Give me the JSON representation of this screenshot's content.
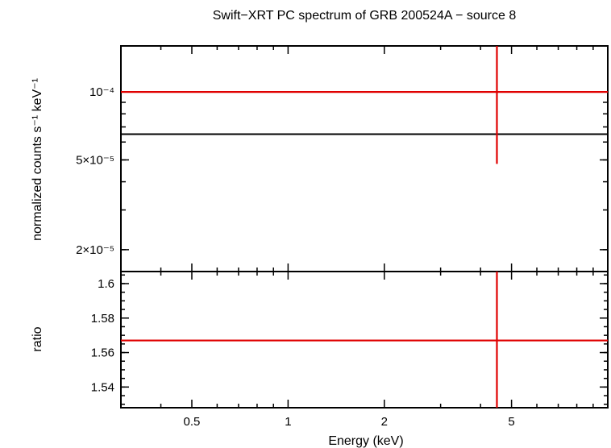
{
  "chart_data": [
    {
      "type": "line",
      "panel": "spectrum",
      "title": "Swift−XRT PC spectrum of GRB 200524A − source 8",
      "xlabel": "Energy (keV)",
      "ylabel": "normalized counts s⁻¹ keV⁻¹",
      "xscale": "log",
      "yscale": "log",
      "xlim": [
        0.3,
        10
      ],
      "ylim": [
        1.6e-05,
        0.00016
      ],
      "yticks": [
        {
          "value": 0.0001,
          "label": "10⁻⁴"
        },
        {
          "value": 5e-05,
          "label": "5×10⁻⁵"
        },
        {
          "value": 2e-05,
          "label": "2×10⁻⁵"
        }
      ],
      "series": [
        {
          "kind": "data",
          "color": "#e00000",
          "x": 4.5,
          "xerr": [
            0.3,
            10
          ],
          "y": 0.0001,
          "yerr": [
            4.8e-05,
            0.00016
          ]
        },
        {
          "kind": "model",
          "color": "#000000",
          "x": [
            0.3,
            10
          ],
          "y": [
            6.5e-05,
            6.5e-05
          ]
        }
      ]
    },
    {
      "type": "line",
      "panel": "ratio",
      "xlabel": "Energy (keV)",
      "ylabel": "ratio",
      "xscale": "log",
      "xlim": [
        0.3,
        10
      ],
      "ylim": [
        1.528,
        1.607
      ],
      "xticks": [
        {
          "value": 0.5,
          "label": "0.5"
        },
        {
          "value": 1,
          "label": "1"
        },
        {
          "value": 2,
          "label": "2"
        },
        {
          "value": 5,
          "label": "5"
        }
      ],
      "yticks": [
        {
          "value": 1.54,
          "label": "1.54"
        },
        {
          "value": 1.56,
          "label": "1.56"
        },
        {
          "value": 1.58,
          "label": "1.58"
        },
        {
          "value": 1.6,
          "label": "1.6"
        }
      ],
      "series": [
        {
          "kind": "data",
          "color": "#e00000",
          "x": 4.5,
          "xerr": [
            0.3,
            10
          ],
          "y": 1.567,
          "yerr": [
            1.528,
            1.607
          ]
        }
      ]
    }
  ]
}
